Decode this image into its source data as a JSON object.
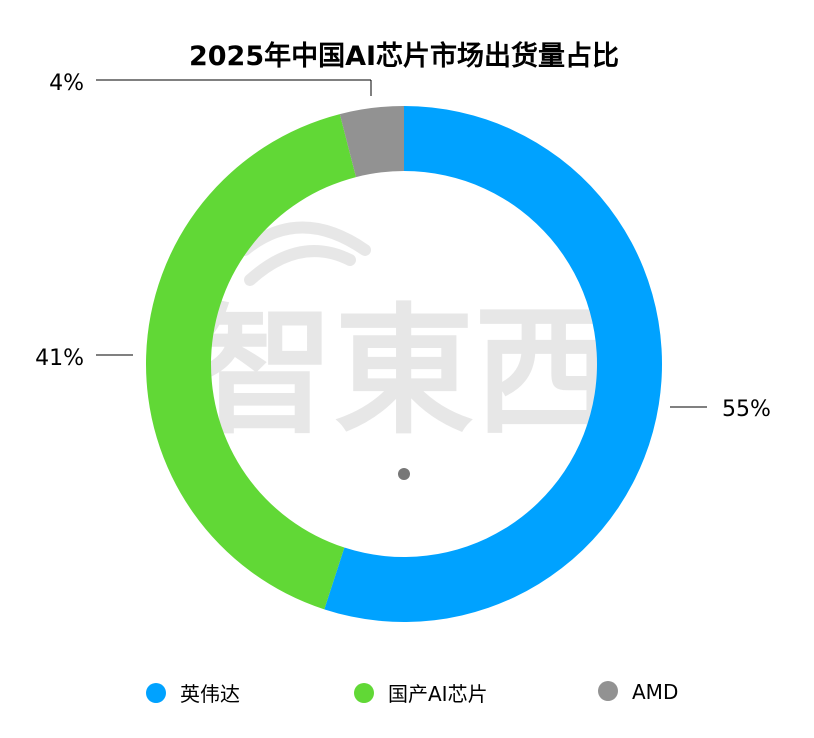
{
  "chart_data": {
    "type": "pie",
    "donut": true,
    "title": "2025年中国AI芯片市场出货量占比",
    "categories": [
      "英伟达",
      "国产AI芯片",
      "AMD"
    ],
    "values": [
      55,
      41,
      4
    ],
    "labels": [
      "55%",
      "41%",
      "4%"
    ],
    "colors": [
      "#00A2FF",
      "#61D836",
      "#929292"
    ],
    "start": "top, clockwise",
    "legend_position": "bottom"
  },
  "watermark": "智東西"
}
